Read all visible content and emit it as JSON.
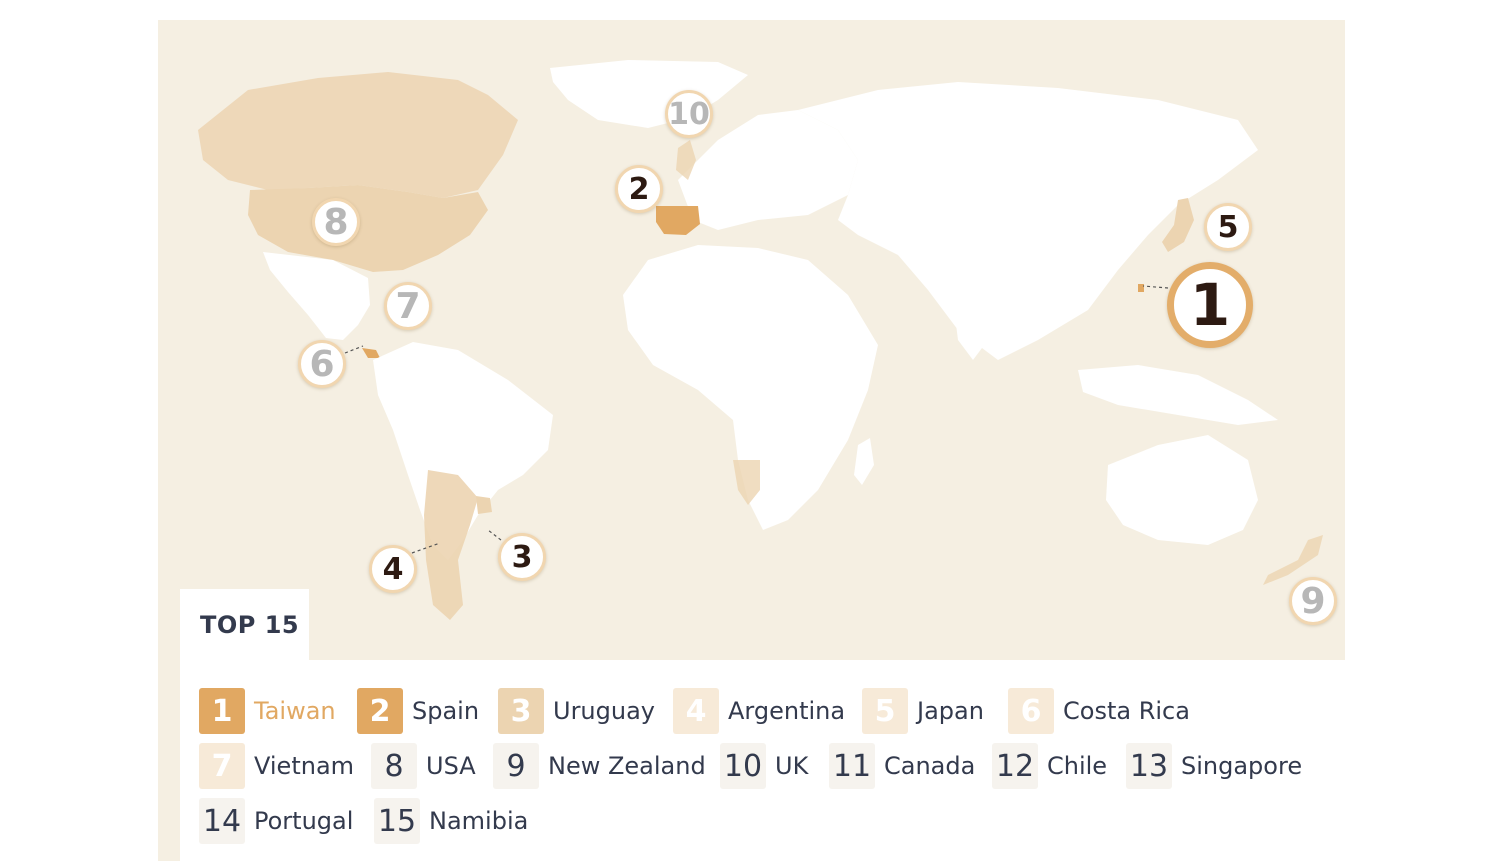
{
  "legend_title": "TOP 15",
  "colors": {
    "background": "#f5efe2",
    "land_white": "#ffffff",
    "tier1": "#e1a862",
    "tier2": "#ecd4b1",
    "tier3": "#f7ead8",
    "text": "#333a4d",
    "marker_dark": "#2d1a12",
    "marker_grey": "#b7b7b7"
  },
  "markers": [
    {
      "rank": "1",
      "country": "Taiwan",
      "style": "big"
    },
    {
      "rank": "2",
      "country": "Spain",
      "style": "dark"
    },
    {
      "rank": "3",
      "country": "Uruguay",
      "style": "dark"
    },
    {
      "rank": "4",
      "country": "Argentina",
      "style": "dark"
    },
    {
      "rank": "5",
      "country": "Japan",
      "style": "dark"
    },
    {
      "rank": "6",
      "country": "Costa Rica",
      "style": "grey"
    },
    {
      "rank": "7",
      "country": "Vietnam",
      "style": "grey"
    },
    {
      "rank": "8",
      "country": "USA",
      "style": "grey"
    },
    {
      "rank": "9",
      "country": "New Zealand",
      "style": "grey"
    },
    {
      "rank": "10",
      "country": "UK",
      "style": "grey"
    }
  ],
  "ranking": [
    {
      "rank": "1",
      "country": "Taiwan",
      "tier": "t1"
    },
    {
      "rank": "2",
      "country": "Spain",
      "tier": "t1"
    },
    {
      "rank": "3",
      "country": "Uruguay",
      "tier": "t2"
    },
    {
      "rank": "4",
      "country": "Argentina",
      "tier": "t3"
    },
    {
      "rank": "5",
      "country": "Japan",
      "tier": "t3"
    },
    {
      "rank": "6",
      "country": "Costa Rica",
      "tier": "t3"
    },
    {
      "rank": "7",
      "country": "Vietnam",
      "tier": "t3"
    },
    {
      "rank": "8",
      "country": "USA",
      "tier": "t4"
    },
    {
      "rank": "9",
      "country": "New Zealand",
      "tier": "t4"
    },
    {
      "rank": "10",
      "country": "UK",
      "tier": "t4"
    },
    {
      "rank": "11",
      "country": "Canada",
      "tier": "t4"
    },
    {
      "rank": "12",
      "country": "Chile",
      "tier": "t4"
    },
    {
      "rank": "13",
      "country": "Singapore",
      "tier": "t4"
    },
    {
      "rank": "14",
      "country": "Portugal",
      "tier": "t4"
    },
    {
      "rank": "15",
      "country": "Namibia",
      "tier": "t4"
    }
  ]
}
